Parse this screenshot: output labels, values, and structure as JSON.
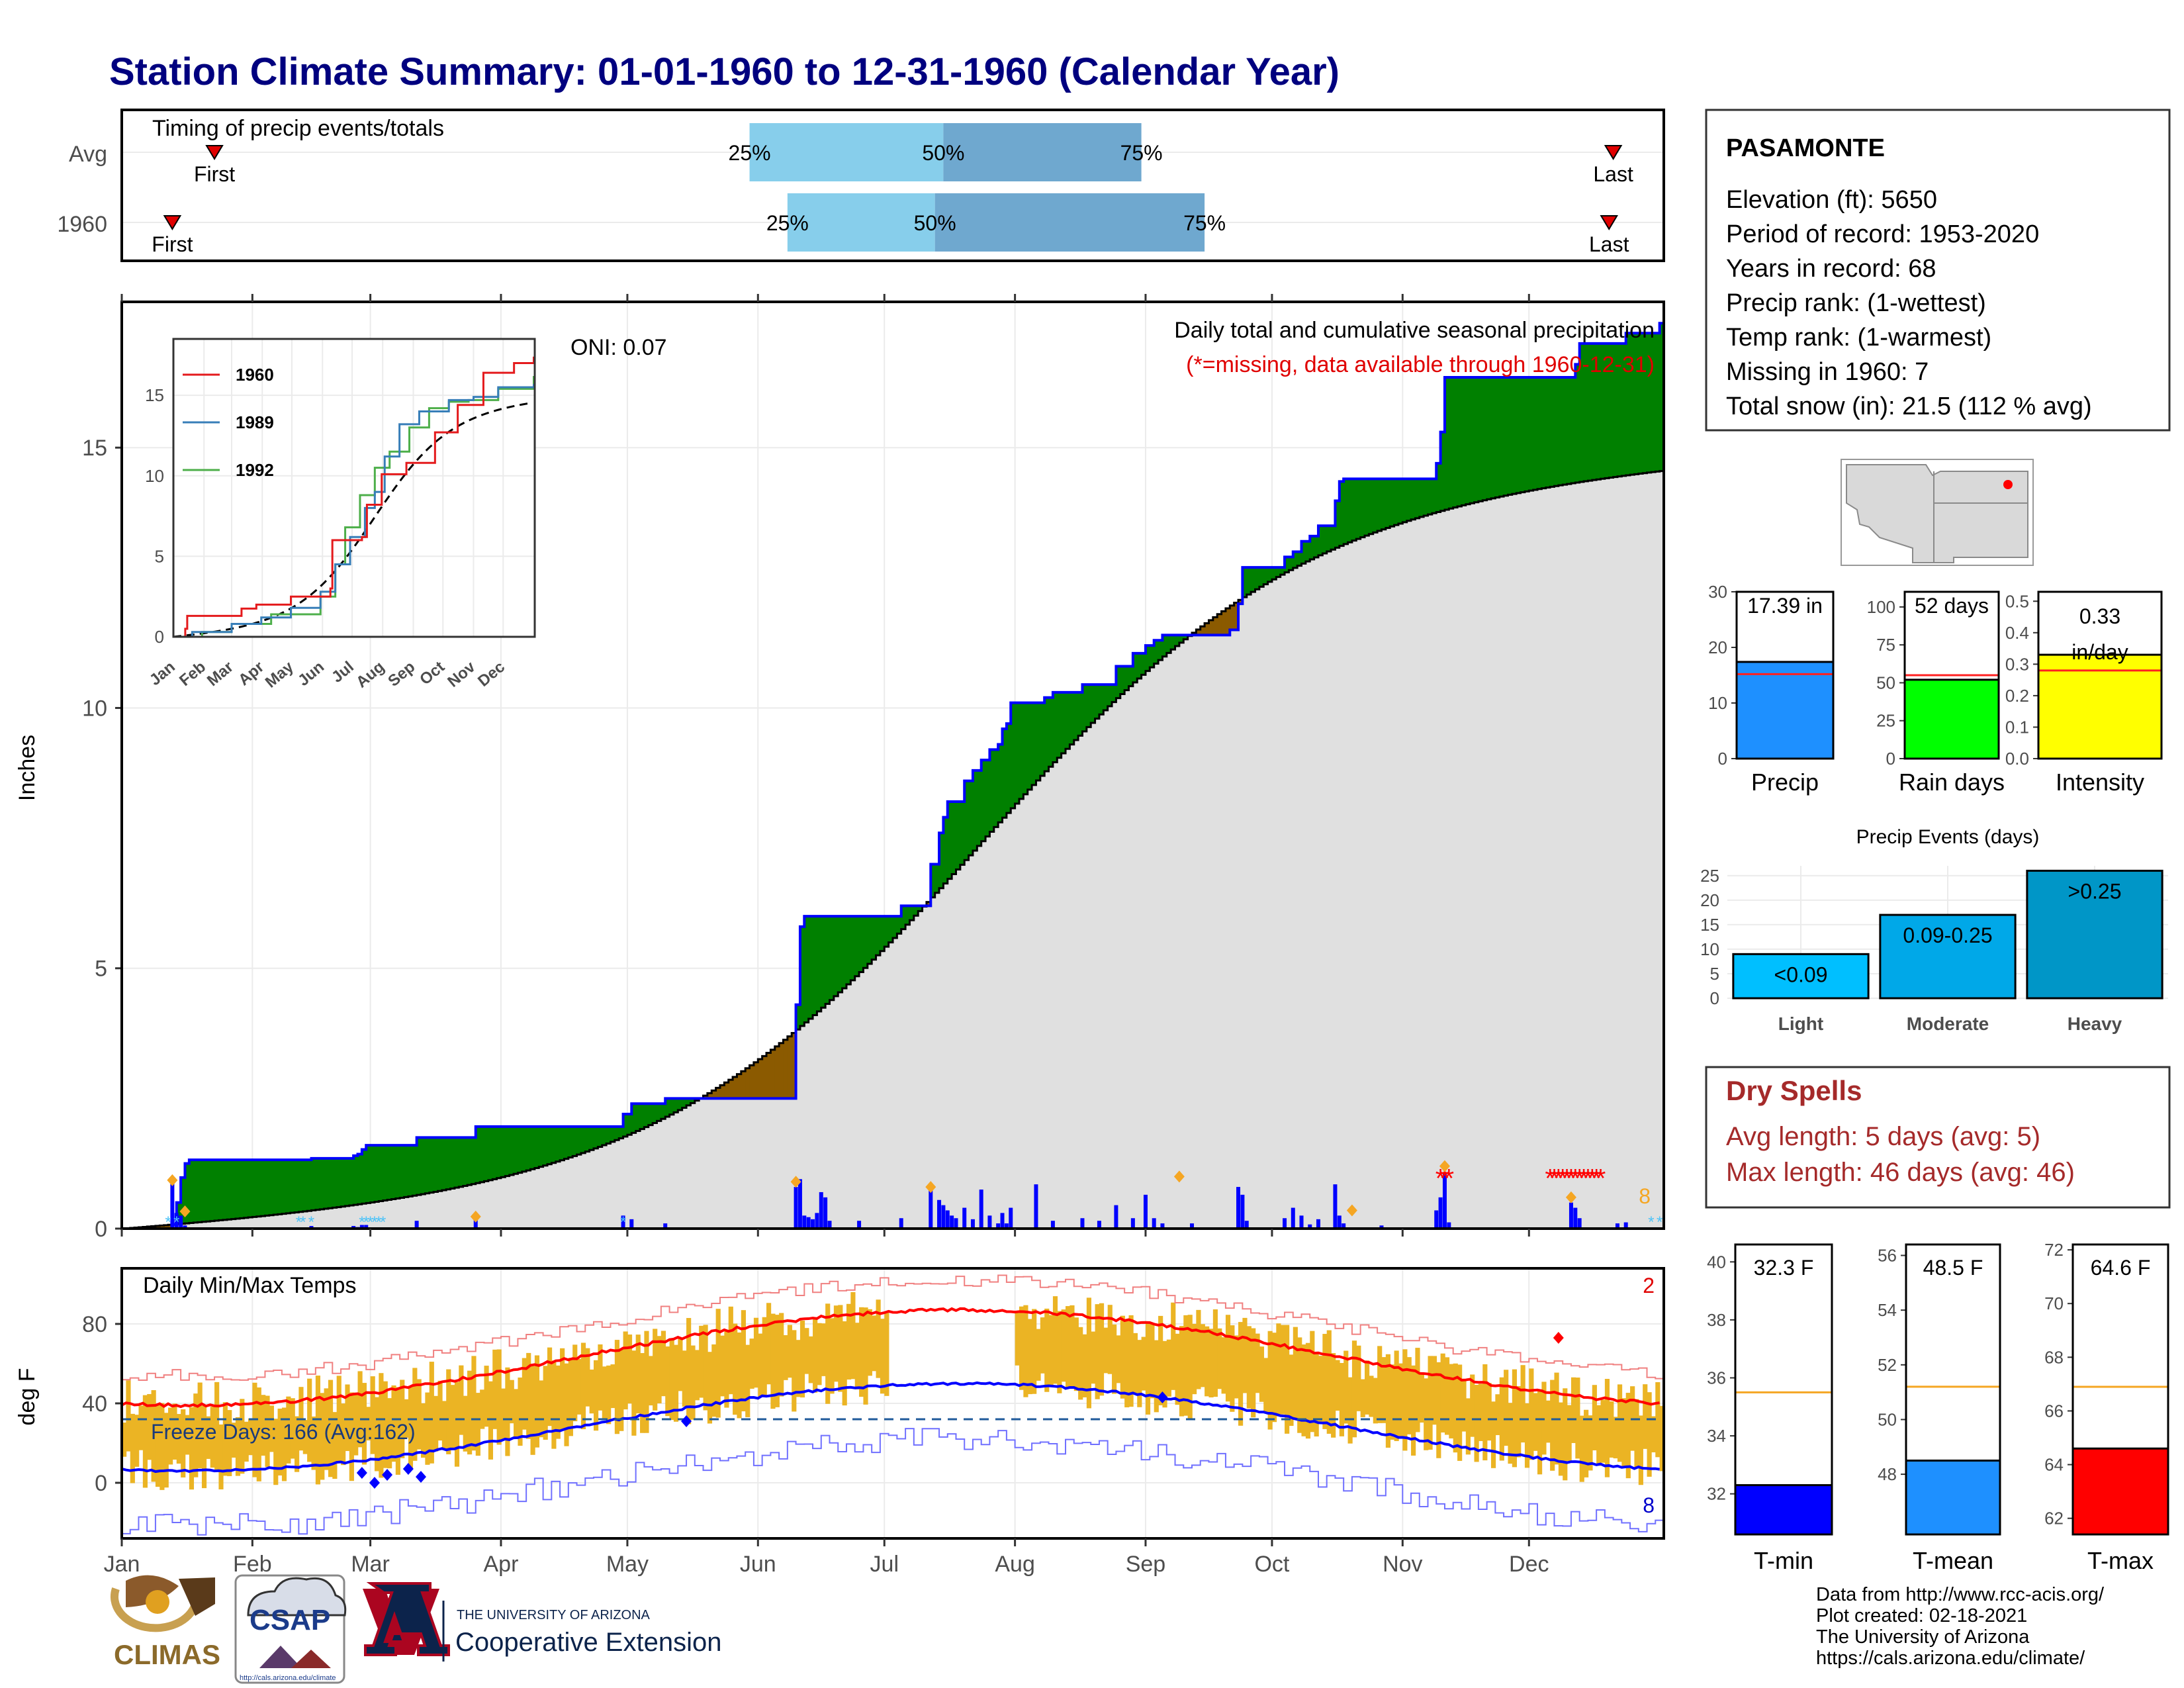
{
  "title": "Station Climate Summary: 01-01-1960 to 12-31-1960 (Calendar Year)",
  "timing": {
    "label": "Timing of precip events/totals",
    "rows": [
      {
        "name": "Avg",
        "first_day": 23,
        "last_day": 355,
        "q25": 150,
        "q50": 196,
        "q75": 243
      },
      {
        "name": "1960",
        "first_day": 13,
        "last_day": 354,
        "q25": 159,
        "q50": 194,
        "q75": 258
      }
    ],
    "first_label": "First",
    "last_label": "Last",
    "q25_label": "25%",
    "q50_label": "50%",
    "q75_label": "75%"
  },
  "precip": {
    "ylabel": "Inches",
    "yticks": [
      0,
      5,
      10,
      15
    ],
    "ylim": [
      0,
      17.8
    ],
    "note_title": "Daily total and cumulative seasonal precipitation",
    "note_missing": "(*=missing, data available through 1960-12-31)",
    "oni": "ONI: 0.07",
    "missing_count": "8",
    "cum_1960": [
      [
        0,
        0
      ],
      [
        13,
        0.08
      ],
      [
        14,
        0.5
      ],
      [
        15,
        0.98
      ],
      [
        16,
        1.25
      ],
      [
        17,
        1.32
      ],
      [
        45,
        1.32
      ],
      [
        46,
        1.35
      ],
      [
        56,
        1.4
      ],
      [
        57,
        1.43
      ],
      [
        58,
        1.52
      ],
      [
        59,
        1.6
      ],
      [
        70,
        1.6
      ],
      [
        71,
        1.75
      ],
      [
        84,
        1.75
      ],
      [
        85,
        1.96
      ],
      [
        119,
        1.96
      ],
      [
        120,
        2.2
      ],
      [
        122,
        2.4
      ],
      [
        130,
        2.5
      ],
      [
        145,
        2.5
      ],
      [
        160,
        2.5
      ],
      [
        161,
        4.3
      ],
      [
        162,
        5.8
      ],
      [
        163,
        6.0
      ],
      [
        184,
        6.0
      ],
      [
        186,
        6.2
      ],
      [
        192,
        6.2
      ],
      [
        193,
        7.0
      ],
      [
        195,
        7.6
      ],
      [
        196,
        7.9
      ],
      [
        197,
        8.2
      ],
      [
        200,
        8.2
      ],
      [
        201,
        8.6
      ],
      [
        203,
        8.8
      ],
      [
        205,
        9.0
      ],
      [
        207,
        9.2
      ],
      [
        209,
        9.3
      ],
      [
        210,
        9.6
      ],
      [
        211,
        9.7
      ],
      [
        212,
        10.1
      ],
      [
        220,
        10.2
      ],
      [
        222,
        10.3
      ],
      [
        228,
        10.3
      ],
      [
        229,
        10.45
      ],
      [
        236,
        10.45
      ],
      [
        237,
        10.8
      ],
      [
        240,
        10.8
      ],
      [
        241,
        11.05
      ],
      [
        244,
        11.2
      ],
      [
        246,
        11.3
      ],
      [
        248,
        11.4
      ],
      [
        260,
        11.4
      ],
      [
        264,
        11.5
      ],
      [
        266,
        12.0
      ],
      [
        267,
        12.7
      ],
      [
        275,
        12.7
      ],
      [
        277,
        12.9
      ],
      [
        279,
        13.0
      ],
      [
        281,
        13.2
      ],
      [
        283,
        13.3
      ],
      [
        285,
        13.5
      ],
      [
        288,
        13.5
      ],
      [
        289,
        13.98
      ],
      [
        290,
        14.35
      ],
      [
        291,
        14.4
      ],
      [
        300,
        14.4
      ],
      [
        310,
        14.4
      ],
      [
        313,
        14.7
      ],
      [
        314,
        15.3
      ],
      [
        315,
        16.35
      ],
      [
        345,
        16.35
      ],
      [
        346,
        16.6
      ],
      [
        347,
        17.0
      ],
      [
        355,
        17.0
      ],
      [
        358,
        17.2
      ],
      [
        365,
        17.2
      ],
      [
        366,
        17.39
      ]
    ],
    "normal_end": 14.55,
    "daily": [
      [
        13,
        0.9
      ],
      [
        14,
        0.3
      ],
      [
        15,
        0.25
      ],
      [
        16,
        0.06
      ],
      [
        46,
        0.05
      ],
      [
        56,
        0.05
      ],
      [
        57,
        0.03
      ],
      [
        58,
        0.07
      ],
      [
        59,
        0.07
      ],
      [
        71,
        0.15
      ],
      [
        85,
        0.2
      ],
      [
        120,
        0.25
      ],
      [
        122,
        0.18
      ],
      [
        130,
        0.1
      ],
      [
        161,
        0.8
      ],
      [
        162,
        0.95
      ],
      [
        163,
        0.25
      ],
      [
        164,
        0.22
      ],
      [
        165,
        0.18
      ],
      [
        166,
        0.3
      ],
      [
        167,
        0.7
      ],
      [
        168,
        0.6
      ],
      [
        169,
        0.15
      ],
      [
        176,
        0.15
      ],
      [
        186,
        0.2
      ],
      [
        193,
        0.8
      ],
      [
        195,
        0.55
      ],
      [
        196,
        0.45
      ],
      [
        197,
        0.35
      ],
      [
        198,
        0.25
      ],
      [
        199,
        0.2
      ],
      [
        201,
        0.4
      ],
      [
        203,
        0.18
      ],
      [
        205,
        0.75
      ],
      [
        207,
        0.25
      ],
      [
        209,
        0.1
      ],
      [
        210,
        0.3
      ],
      [
        211,
        0.1
      ],
      [
        212,
        0.4
      ],
      [
        218,
        0.85
      ],
      [
        222,
        0.15
      ],
      [
        229,
        0.2
      ],
      [
        233,
        0.15
      ],
      [
        237,
        0.45
      ],
      [
        241,
        0.2
      ],
      [
        244,
        0.65
      ],
      [
        246,
        0.2
      ],
      [
        248,
        0.1
      ],
      [
        255,
        0.1
      ],
      [
        266,
        0.8
      ],
      [
        267,
        0.65
      ],
      [
        268,
        0.15
      ],
      [
        277,
        0.2
      ],
      [
        279,
        0.4
      ],
      [
        281,
        0.25
      ],
      [
        283,
        0.08
      ],
      [
        285,
        0.18
      ],
      [
        289,
        0.85
      ],
      [
        290,
        0.25
      ],
      [
        291,
        0.1
      ],
      [
        300,
        0.06
      ],
      [
        313,
        0.35
      ],
      [
        314,
        0.6
      ],
      [
        315,
        1.05
      ],
      [
        316,
        0.12
      ],
      [
        345,
        0.5
      ],
      [
        346,
        0.4
      ],
      [
        347,
        0.2
      ],
      [
        356,
        0.1
      ],
      [
        358,
        0.12
      ]
    ],
    "missing_days": [
      314,
      315,
      316,
      340,
      341,
      342,
      343,
      344,
      345,
      346,
      347,
      348,
      349,
      350,
      351,
      352
    ],
    "snow_days": [
      12,
      14,
      43,
      44,
      46,
      58,
      59,
      60,
      61,
      62,
      63,
      120,
      364,
      366
    ],
    "orange_diamonds": [
      [
        13,
        0.93
      ],
      [
        16,
        0.33
      ],
      [
        85,
        0.23
      ],
      [
        161,
        0.9
      ],
      [
        193,
        0.8
      ],
      [
        252,
        1.0
      ],
      [
        293,
        0.35
      ],
      [
        315,
        1.2
      ],
      [
        345,
        0.6
      ]
    ]
  },
  "inset": {
    "yticks": [
      0,
      5,
      10,
      15
    ],
    "ylim": [
      0,
      18.5
    ],
    "months": [
      "Jan",
      "Feb",
      "Mar",
      "Apr",
      "May",
      "Jun",
      "Jul",
      "Aug",
      "Sep",
      "Oct",
      "Nov",
      "Dec"
    ],
    "series": [
      {
        "name": "1960",
        "color": "#e41a1c",
        "points": [
          [
            0,
            0
          ],
          [
            13,
            0.5
          ],
          [
            15,
            1.3
          ],
          [
            70,
            1.75
          ],
          [
            85,
            2.0
          ],
          [
            120,
            2.5
          ],
          [
            160,
            3.0
          ],
          [
            162,
            6.0
          ],
          [
            192,
            6.2
          ],
          [
            197,
            8.2
          ],
          [
            212,
            10.1
          ],
          [
            237,
            10.8
          ],
          [
            266,
            12.7
          ],
          [
            289,
            14.4
          ],
          [
            315,
            16.4
          ],
          [
            346,
            17.0
          ],
          [
            366,
            17.4
          ]
        ]
      },
      {
        "name": "1989",
        "color": "#377eb8",
        "points": [
          [
            0,
            0
          ],
          [
            20,
            0.3
          ],
          [
            60,
            0.8
          ],
          [
            90,
            1.2
          ],
          [
            120,
            1.8
          ],
          [
            150,
            2.8
          ],
          [
            165,
            4.5
          ],
          [
            180,
            6.2
          ],
          [
            195,
            8.0
          ],
          [
            205,
            9.0
          ],
          [
            215,
            11.2
          ],
          [
            230,
            13.2
          ],
          [
            250,
            14.0
          ],
          [
            280,
            14.7
          ],
          [
            305,
            14.9
          ],
          [
            330,
            15.5
          ],
          [
            366,
            15.7
          ]
        ]
      },
      {
        "name": "1992",
        "color": "#4daf4a",
        "points": [
          [
            0,
            0
          ],
          [
            30,
            0.3
          ],
          [
            60,
            0.8
          ],
          [
            100,
            1.4
          ],
          [
            150,
            2.5
          ],
          [
            165,
            4.5
          ],
          [
            175,
            6.8
          ],
          [
            190,
            8.8
          ],
          [
            205,
            10.5
          ],
          [
            220,
            11.5
          ],
          [
            240,
            13.0
          ],
          [
            260,
            14.2
          ],
          [
            280,
            14.6
          ],
          [
            300,
            14.7
          ],
          [
            330,
            15.4
          ],
          [
            366,
            16.2
          ]
        ]
      }
    ],
    "normal_end": 14.55
  },
  "temp": {
    "ylabel": "deg F",
    "label": "Daily Min/Max Temps",
    "yticks": [
      0,
      40,
      80
    ],
    "ylim": [
      -28,
      108
    ],
    "freeze_label": "Freeze Days: 166 (Avg:162)",
    "freeze_line": 32,
    "count_top": "2",
    "count_bottom": "8",
    "missing_start": 183,
    "missing_end": 212,
    "blue_diamonds": [
      [
        58,
        5
      ],
      [
        61,
        0
      ],
      [
        64,
        4
      ],
      [
        69,
        7
      ],
      [
        72,
        3
      ],
      [
        135,
        31
      ],
      [
        248,
        43
      ]
    ],
    "red_diamonds": [
      [
        342,
        73
      ]
    ]
  },
  "months": [
    "Jan",
    "Feb",
    "Mar",
    "Apr",
    "May",
    "Jun",
    "Jul",
    "Aug",
    "Sep",
    "Oct",
    "Nov",
    "Dec"
  ],
  "month_starts": [
    1,
    32,
    60,
    91,
    121,
    152,
    182,
    213,
    244,
    274,
    305,
    335
  ],
  "station": {
    "name": "PASAMONTE",
    "lines": [
      "Elevation (ft): 5650",
      "Period of record: 1953-2020",
      "Years in record: 68",
      "Precip rank:  (1-wettest)",
      "Temp rank:  (1-warmest)",
      "Missing in 1960: 7",
      "Total snow (in): 21.5 (112 % avg)"
    ]
  },
  "mini_bars": [
    {
      "name": "Precip",
      "value": 17.39,
      "avg": 15.2,
      "ylim": [
        0,
        30
      ],
      "ticks": [
        0,
        10,
        20,
        30
      ],
      "label": "17.39 in",
      "color": "#1e90ff"
    },
    {
      "name": "Rain days",
      "value": 52,
      "avg": 55,
      "ylim": [
        0,
        110
      ],
      "ticks": [
        0,
        25,
        50,
        75,
        100
      ],
      "label": "52 days",
      "color": "#00ff00"
    },
    {
      "name": "Intensity",
      "value": 0.33,
      "avg": 0.28,
      "ylim": [
        0,
        0.53
      ],
      "ticks": [
        0.0,
        0.1,
        0.2,
        0.3,
        0.4,
        0.5
      ],
      "label": "0.33 in/day",
      "label_lines": [
        "0.33",
        "in/day"
      ],
      "color": "#ffff00"
    }
  ],
  "precip_events": {
    "title": "Precip Events (days)",
    "categories": [
      "Light",
      "Moderate",
      "Heavy"
    ],
    "values": [
      9,
      17,
      26
    ],
    "labels": [
      "<0.09",
      "0.09-0.25",
      ">0.25"
    ],
    "ylim": [
      0,
      27
    ],
    "ticks": [
      0,
      5,
      10,
      15,
      20,
      25
    ],
    "colors": [
      "#00bfff",
      "#00a8e8",
      "#0096c7"
    ]
  },
  "dry_spells": {
    "title": "Dry Spells",
    "avg_line": "Avg length: 5 days (avg: 5)",
    "max_line": "Max length: 46 days (avg: 46)"
  },
  "temp_bars": [
    {
      "name": "T-min",
      "value": 32.3,
      "avg": 35.5,
      "ylim": [
        30.6,
        40.6
      ],
      "ticks": [
        32,
        34,
        36,
        38,
        40
      ],
      "label": "32.3 F",
      "color": "#0000ff"
    },
    {
      "name": "T-mean",
      "value": 48.5,
      "avg": 51.2,
      "ylim": [
        45.8,
        56.4
      ],
      "ticks": [
        48,
        50,
        52,
        54,
        56
      ],
      "label": "48.5 F",
      "color": "#1e90ff"
    },
    {
      "name": "T-max",
      "value": 64.6,
      "avg": 66.9,
      "ylim": [
        61.4,
        72.2
      ],
      "ticks": [
        62,
        64,
        66,
        68,
        70,
        72
      ],
      "label": "64.6 F",
      "color": "#ff0000"
    }
  ],
  "footer": {
    "lines": [
      "Data from http://www.rcc-acis.org/",
      "Plot created: 02-18-2021",
      "The University of Arizona",
      "https://cals.arizona.edu/climate/"
    ],
    "climas": "CLIMAS",
    "csap": "CSAP",
    "csap_url": "http://cals.arizona.edu/climate",
    "ua_small": "THE UNIVERSITY OF ARIZONA",
    "ua_big": "Cooperative Extension"
  }
}
